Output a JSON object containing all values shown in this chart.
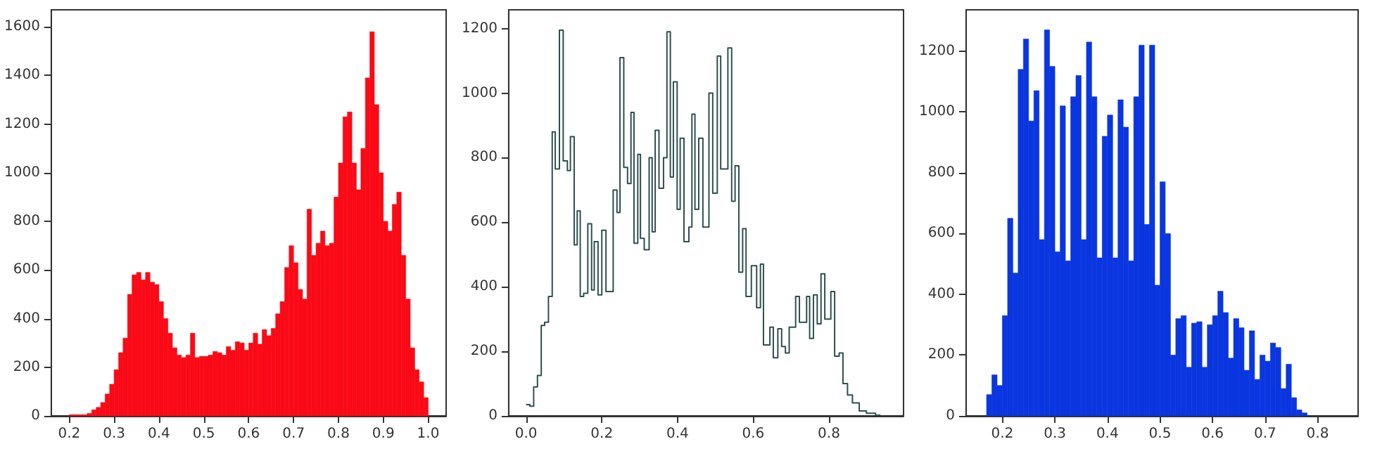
{
  "chart_data": [
    {
      "type": "histogram",
      "xlim": [
        0.16,
        1.04
      ],
      "ylim": [
        0,
        1670
      ],
      "xticks": [
        0.2,
        0.3,
        0.4,
        0.5,
        0.6,
        0.7,
        0.8,
        0.9,
        {
          "value": 1.0,
          "label": "1.0"
        }
      ],
      "yticks": [
        0,
        200,
        400,
        600,
        800,
        1000,
        1200,
        1400,
        1600
      ],
      "grid": false,
      "bins": [
        0.2,
        0.21,
        0.22,
        0.23,
        0.24,
        0.25,
        0.26,
        0.27,
        0.28,
        0.29,
        0.3,
        0.31,
        0.32,
        0.33,
        0.34,
        0.35,
        0.36,
        0.37,
        0.38,
        0.39,
        0.4,
        0.41,
        0.42,
        0.43,
        0.44,
        0.45,
        0.46,
        0.47,
        0.48,
        0.49,
        0.5,
        0.51,
        0.52,
        0.53,
        0.54,
        0.55,
        0.56,
        0.57,
        0.58,
        0.59,
        0.6,
        0.61,
        0.62,
        0.63,
        0.64,
        0.65,
        0.66,
        0.67,
        0.68,
        0.69,
        0.7,
        0.71,
        0.72,
        0.73,
        0.74,
        0.75,
        0.76,
        0.77,
        0.78,
        0.79,
        0.8,
        0.81,
        0.82,
        0.83,
        0.84,
        0.85,
        0.86,
        0.87,
        0.88,
        0.89,
        0.9,
        0.91,
        0.92,
        0.93,
        0.94,
        0.95,
        0.96,
        0.97,
        0.98,
        0.99,
        1.0
      ],
      "series": [
        {
          "color": "#fa0a16",
          "values": [
            5,
            5,
            5,
            5,
            10,
            25,
            35,
            55,
            90,
            130,
            190,
            260,
            320,
            500,
            580,
            590,
            560,
            590,
            550,
            540,
            470,
            400,
            340,
            280,
            250,
            240,
            250,
            340,
            240,
            245,
            245,
            250,
            265,
            260,
            250,
            285,
            270,
            305,
            300,
            270,
            300,
            340,
            295,
            355,
            330,
            360,
            420,
            470,
            610,
            700,
            630,
            520,
            480,
            850,
            660,
            710,
            760,
            700,
            710,
            900,
            1040,
            1230,
            1250,
            1040,
            930,
            1100,
            1390,
            1580,
            1280,
            1000,
            800,
            760,
            870,
            920,
            660,
            480,
            280,
            190,
            140,
            75
          ]
        }
      ]
    },
    {
      "type": "step",
      "xlim": [
        -0.046,
        0.997
      ],
      "ylim": [
        0,
        1258
      ],
      "xticks": [
        {
          "value": 0,
          "label": "0.0"
        },
        0.2,
        0.4,
        0.6,
        0.8
      ],
      "yticks": [
        0,
        200,
        400,
        600,
        800,
        1000,
        1200
      ],
      "grid": false,
      "x": [
        0.0,
        0.01,
        0.02,
        0.03,
        0.04,
        0.049,
        0.059,
        0.069,
        0.077,
        0.088,
        0.098,
        0.109,
        0.117,
        0.127,
        0.135,
        0.143,
        0.152,
        0.163,
        0.173,
        0.18,
        0.19,
        0.2,
        0.211,
        0.23,
        0.24,
        0.248,
        0.258,
        0.268,
        0.277,
        0.285,
        0.295,
        0.302,
        0.312,
        0.325,
        0.333,
        0.341,
        0.351,
        0.363,
        0.372,
        0.381,
        0.389,
        0.399,
        0.407,
        0.417,
        0.43,
        0.438,
        0.446,
        0.456,
        0.467,
        0.483,
        0.493,
        0.505,
        0.514,
        0.533,
        0.543,
        0.552,
        0.562,
        0.572,
        0.581,
        0.595,
        0.609,
        0.619,
        0.627,
        0.644,
        0.653,
        0.665,
        0.675,
        0.685,
        0.695,
        0.712,
        0.722,
        0.741,
        0.749,
        0.759,
        0.769,
        0.779,
        0.789,
        0.805,
        0.815,
        0.827,
        0.837,
        0.849,
        0.862,
        0.88,
        0.899,
        0.923,
        0.936
      ],
      "series": [
        {
          "color": "#2f4f4f",
          "values": [
            35,
            30,
            90,
            125,
            280,
            290,
            370,
            880,
            765,
            1195,
            790,
            760,
            865,
            530,
            635,
            370,
            380,
            595,
            390,
            540,
            375,
            575,
            385,
            700,
            630,
            1110,
            770,
            720,
            940,
            535,
            810,
            550,
            515,
            800,
            570,
            885,
            705,
            800,
            1190,
            740,
            1035,
            640,
            860,
            540,
            585,
            935,
            640,
            860,
            585,
            1000,
            690,
            1115,
            765,
            1140,
            665,
            775,
            445,
            580,
            370,
            465,
            335,
            470,
            220,
            275,
            180,
            270,
            215,
            195,
            275,
            370,
            290,
            370,
            240,
            375,
            285,
            440,
            300,
            385,
            185,
            195,
            100,
            65,
            40,
            15,
            8,
            2,
            0
          ]
        }
      ]
    },
    {
      "type": "histogram",
      "xlim": [
        0.131,
        0.877
      ],
      "ylim": [
        0,
        1336
      ],
      "xticks": [
        0.2,
        0.3,
        0.4,
        0.5,
        0.6,
        0.7,
        0.8
      ],
      "yticks": [
        0,
        200,
        400,
        600,
        800,
        1000,
        1200
      ],
      "grid": false,
      "bins": [
        0.17,
        0.18,
        0.19,
        0.2,
        0.21,
        0.22,
        0.23,
        0.24,
        0.25,
        0.26,
        0.27,
        0.28,
        0.29,
        0.3,
        0.31,
        0.32,
        0.33,
        0.34,
        0.35,
        0.36,
        0.37,
        0.38,
        0.39,
        0.4,
        0.41,
        0.42,
        0.43,
        0.44,
        0.45,
        0.46,
        0.47,
        0.48,
        0.49,
        0.5,
        0.51,
        0.52,
        0.53,
        0.54,
        0.55,
        0.56,
        0.57,
        0.58,
        0.59,
        0.6,
        0.61,
        0.62,
        0.63,
        0.64,
        0.65,
        0.66,
        0.67,
        0.68,
        0.69,
        0.7,
        0.71,
        0.72,
        0.73,
        0.74,
        0.75,
        0.76,
        0.77,
        0.78
      ],
      "series": [
        {
          "color": "#0a36e0",
          "values": [
            70,
            135,
            100,
            330,
            650,
            470,
            1140,
            1240,
            970,
            1070,
            580,
            1270,
            1150,
            540,
            1020,
            510,
            1050,
            1120,
            580,
            1230,
            1050,
            520,
            920,
            990,
            520,
            1040,
            950,
            510,
            1050,
            1220,
            630,
            1220,
            430,
            770,
            600,
            200,
            320,
            330,
            160,
            305,
            310,
            160,
            300,
            330,
            410,
            340,
            190,
            320,
            290,
            150,
            280,
            120,
            200,
            180,
            240,
            225,
            90,
            170,
            60,
            20,
            10
          ]
        }
      ]
    }
  ]
}
